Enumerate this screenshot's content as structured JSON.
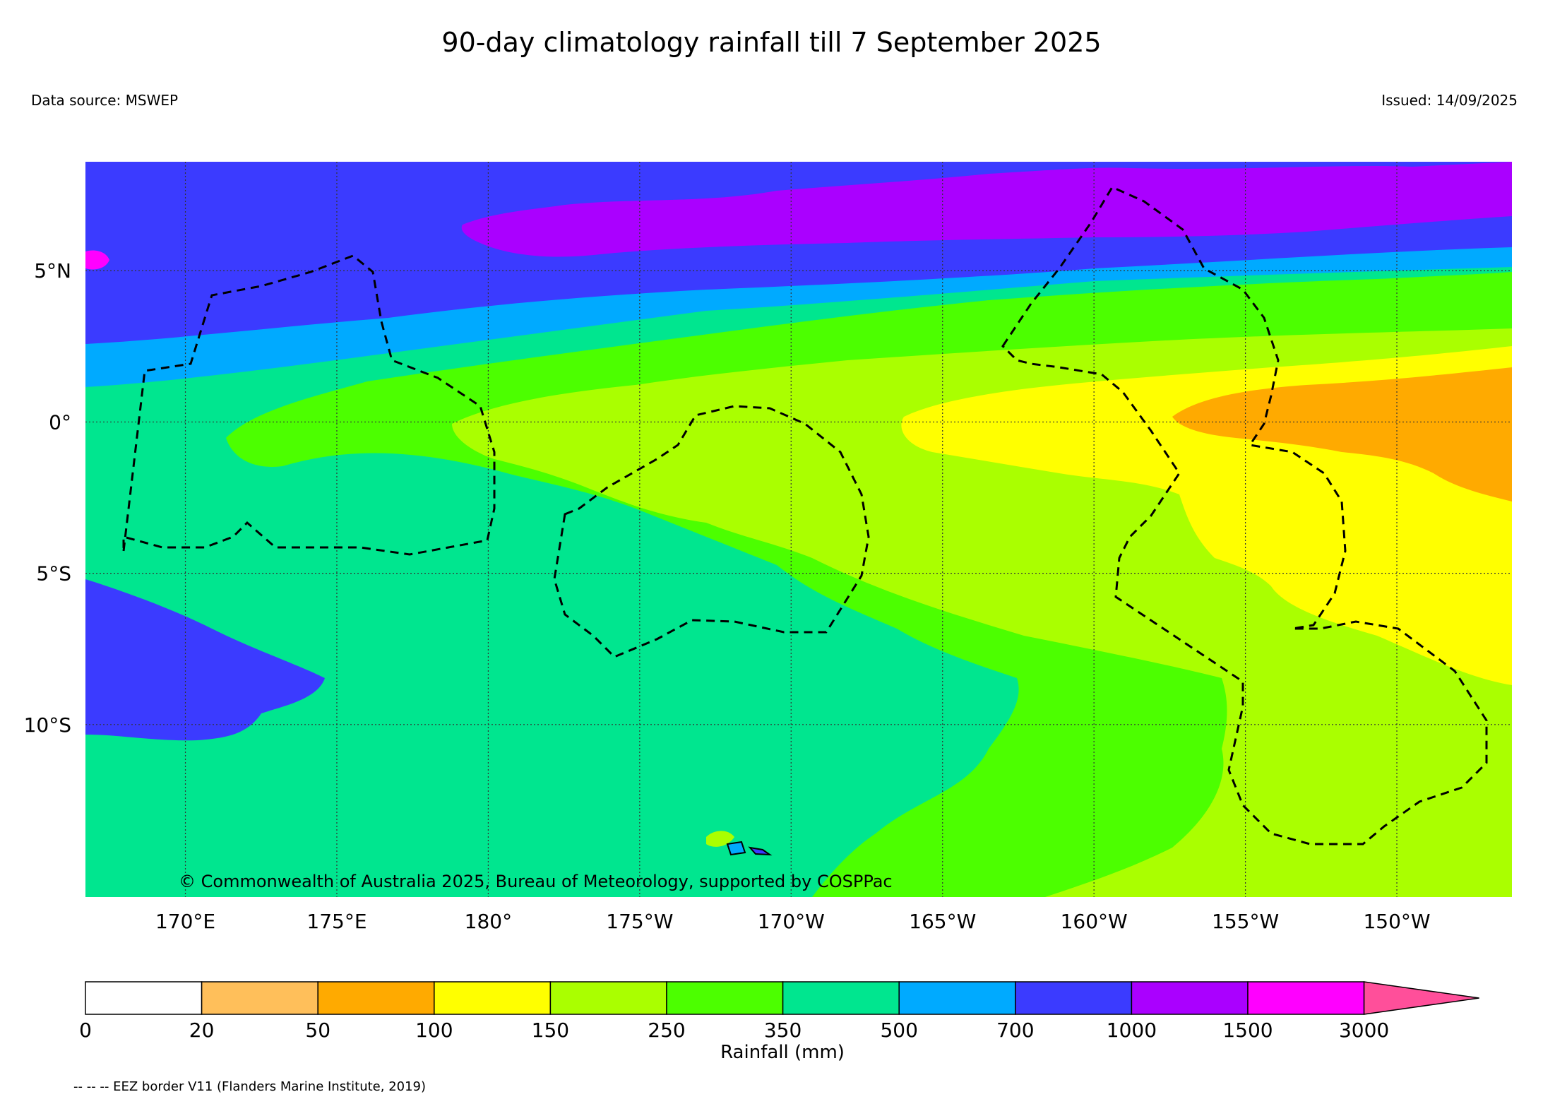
{
  "title": "90-day climatology rainfall till 7 September 2025",
  "data_source": "Data source: MSWEP",
  "issued": "Issued: 14/09/2025",
  "copyright": "© Commonwealth of Australia 2025, Bureau of Meteorology, supported by COSPPac",
  "eez_note": "-- -- -- EEZ border V11 (Flanders Marine Institute, 2019)",
  "map": {
    "lon_range": [
      166.7,
      213.8
    ],
    "lat_range": [
      -15.7,
      8.6
    ],
    "x_ticks": [
      {
        "lon": 170,
        "label": "170°E"
      },
      {
        "lon": 175,
        "label": "175°E"
      },
      {
        "lon": 180,
        "label": "180°"
      },
      {
        "lon": 185,
        "label": "175°W"
      },
      {
        "lon": 190,
        "label": "170°W"
      },
      {
        "lon": 195,
        "label": "165°W"
      },
      {
        "lon": 200,
        "label": "160°W"
      },
      {
        "lon": 205,
        "label": "155°W"
      },
      {
        "lon": 210,
        "label": "150°W"
      }
    ],
    "y_ticks": [
      {
        "lat": 5,
        "label": "5°N"
      },
      {
        "lat": 0,
        "label": "0°"
      },
      {
        "lat": -5,
        "label": "5°S"
      },
      {
        "lat": -10,
        "label": "10°S"
      }
    ]
  },
  "colorbar": {
    "label": "Rainfall (mm)",
    "ticks": [
      "0",
      "20",
      "50",
      "100",
      "150",
      "250",
      "350",
      "500",
      "700",
      "1000",
      "1500",
      "3000"
    ],
    "colors": [
      "#ffffff",
      "#ffbf5a",
      "#ffaa00",
      "#ffff00",
      "#aaff00",
      "#4cff00",
      "#00e68f",
      "#00aaff",
      "#3b3bff",
      "#aa00ff",
      "#ff00ff"
    ],
    "extend_color": "#ff4f9a"
  }
}
